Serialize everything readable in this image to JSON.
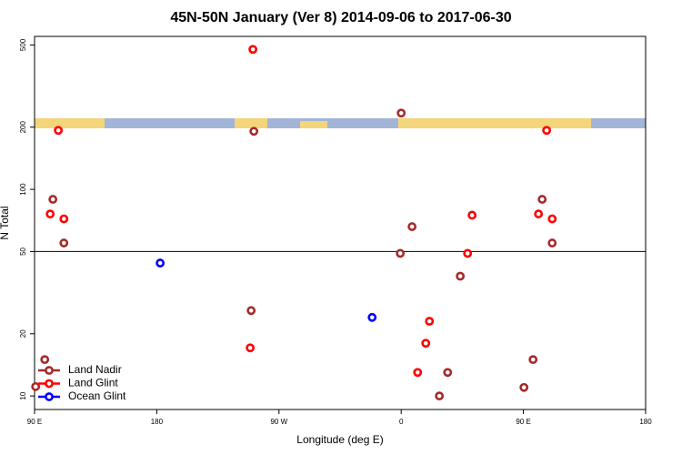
{
  "chart_data": {
    "type": "scatter",
    "title": "45N-50N January (Ver 8)   2014-09-06 to 2017-06-30",
    "x_label": "Longitude (deg E)",
    "y_label": "N Total",
    "log_y": true,
    "xlim": [
      -270,
      180
    ],
    "ylim": [
      8.6,
      550
    ],
    "xticks": [
      {
        "value": -270,
        "label": "90 E"
      },
      {
        "value": -180,
        "label": "180"
      },
      {
        "value": -90,
        "label": "90 W"
      },
      0,
      {
        "value": 90,
        "label": "90 E"
      },
      {
        "value": 180,
        "label": "180"
      }
    ],
    "yticks": [
      10,
      20,
      50,
      100,
      200,
      500
    ],
    "reference_line": 50,
    "legend": "bottom-left",
    "series": [
      {
        "name": "Land Nadir",
        "color": "#a52a2a",
        "x": [
          -256.5,
          -248.4,
          -262.5,
          -269.2,
          -108.5,
          -110.5,
          0,
          8,
          -0.7,
          43.5,
          34.2,
          28.1,
          103.8,
          111.2,
          97.1,
          90.4
        ],
        "values": [
          89.5,
          55,
          15,
          11.1,
          191,
          25.9,
          234,
          66,
          49,
          38,
          13,
          10,
          89.5,
          55,
          15,
          11
        ]
      },
      {
        "name": "Land Glint",
        "color": "#ff0000",
        "x": [
          -252.5,
          -258.5,
          -248.4,
          -109.2,
          -111.2,
          52.2,
          48.9,
          20.8,
          18.1,
          12.1,
          107.1,
          101.1,
          111.2
        ],
        "values": [
          193,
          76,
          72,
          476,
          17.1,
          75,
          49,
          23,
          18,
          13,
          193,
          76,
          72
        ]
      },
      {
        "name": "Ocean Glint",
        "color": "#0000ff",
        "x": [
          -177.5,
          -21.4
        ],
        "values": [
          44,
          24
        ]
      }
    ]
  }
}
